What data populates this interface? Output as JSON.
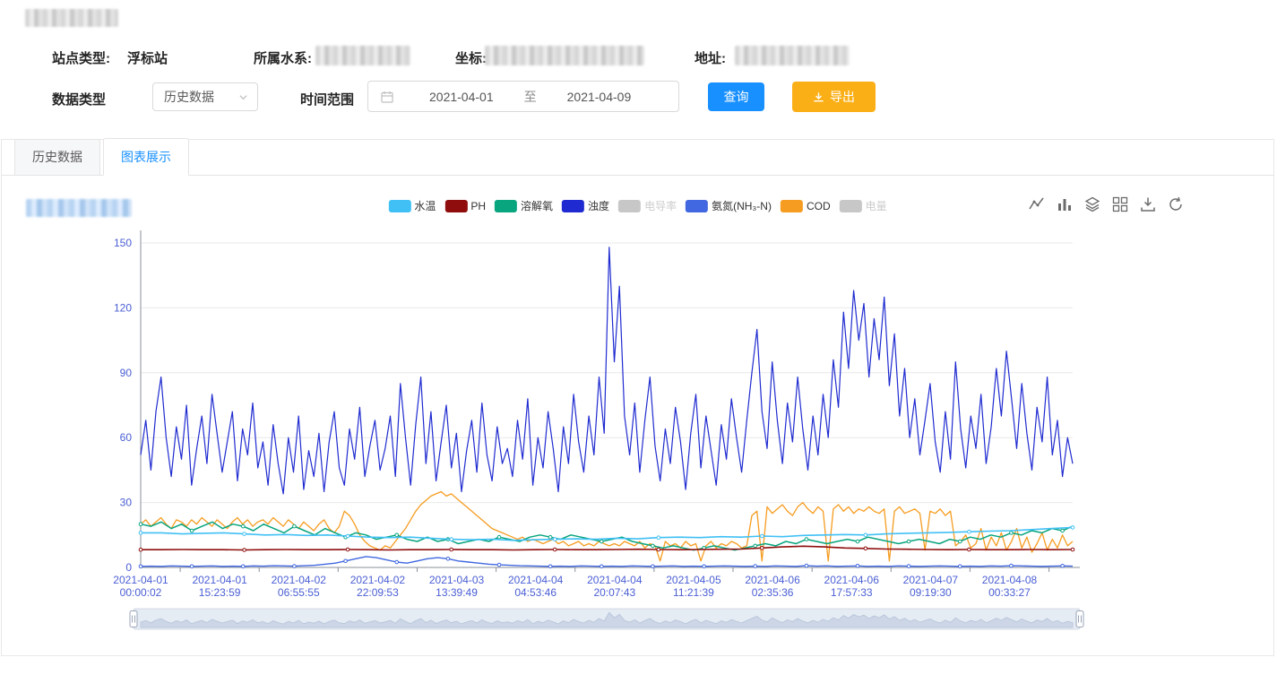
{
  "filters": {
    "station_type_label": "站点类型:",
    "station_type_value": "浮标站",
    "water_system_label": "所属水系:",
    "coordinate_label": "坐标:",
    "address_label": "地址:",
    "data_type_label": "数据类型",
    "data_type_value": "历史数据",
    "time_range_label": "时间范围",
    "date_start": "2021-04-01",
    "date_separator": "至",
    "date_end": "2021-04-09",
    "query_button": "查询",
    "export_button": "导出"
  },
  "redacted_fields": {
    "page_title": true,
    "water_system_value": true,
    "coordinate_value": true,
    "address_value": true,
    "chart_title": true
  },
  "tabs": [
    {
      "label": "历史数据",
      "slug": "history-data",
      "active": false
    },
    {
      "label": "图表展示",
      "slug": "chart-display",
      "active": true
    }
  ],
  "chart_data": {
    "type": "line",
    "title": "",
    "title_redacted": true,
    "ylim": [
      0,
      150
    ],
    "y_ticks": [
      0,
      30,
      60,
      90,
      120,
      150
    ],
    "axis_label_color": "#4a5ed4",
    "grid": true,
    "legend_position": "top-center",
    "x_axis_labels": [
      [
        "2021-04-01",
        "00:00:02"
      ],
      [
        "2021-04-01",
        "15:23:59"
      ],
      [
        "2021-04-02",
        "06:55:55"
      ],
      [
        "2021-04-02",
        "22:09:53"
      ],
      [
        "2021-04-03",
        "13:39:49"
      ],
      [
        "2021-04-04",
        "04:53:46"
      ],
      [
        "2021-04-04",
        "20:07:43"
      ],
      [
        "2021-04-05",
        "11:21:39"
      ],
      [
        "2021-04-06",
        "02:35:36"
      ],
      [
        "2021-04-06",
        "17:57:33"
      ],
      [
        "2021-04-07",
        "09:19:30"
      ],
      [
        "2021-04-08",
        "00:33:27"
      ]
    ],
    "legend": [
      {
        "name": "水温",
        "slug": "water-temp",
        "color": "#41c0f5",
        "enabled": true
      },
      {
        "name": "PH",
        "slug": "ph",
        "color": "#8f0d0d",
        "enabled": true
      },
      {
        "name": "溶解氧",
        "slug": "dissolved-oxygen",
        "color": "#09a57f",
        "enabled": true
      },
      {
        "name": "浊度",
        "slug": "turbidity",
        "color": "#1f2bd0",
        "enabled": true
      },
      {
        "name": "电导率",
        "slug": "conductivity",
        "color": "#c7c7c7",
        "enabled": false
      },
      {
        "name": "氨氮(NH₃-N)",
        "slug": "ammonia",
        "color": "#4168e0",
        "enabled": true
      },
      {
        "name": "COD",
        "slug": "cod",
        "color": "#f69c20",
        "enabled": true
      },
      {
        "name": "电量",
        "slug": "battery",
        "color": "#c7c7c7",
        "enabled": false
      }
    ],
    "toolbox_icons": [
      "line-chart-icon",
      "bar-chart-icon",
      "stack-icon",
      "tile-icon",
      "download-icon",
      "refresh-icon"
    ],
    "series": [
      {
        "name": "浊度",
        "slug": "turbidity",
        "color": "#1f2bd0",
        "width": 1.2,
        "markers": false,
        "values": [
          52,
          68,
          45,
          72,
          88,
          60,
          42,
          65,
          50,
          75,
          38,
          55,
          70,
          48,
          80,
          62,
          44,
          58,
          72,
          40,
          64,
          52,
          76,
          46,
          58,
          38,
          66,
          48,
          34,
          60,
          44,
          70,
          36,
          54,
          42,
          62,
          35,
          58,
          72,
          46,
          38,
          64,
          50,
          74,
          42,
          56,
          68,
          45,
          55,
          70,
          42,
          85,
          60,
          38,
          66,
          88,
          48,
          72,
          40,
          58,
          75,
          46,
          62,
          35,
          54,
          68,
          44,
          76,
          52,
          40,
          65,
          48,
          55,
          42,
          68,
          50,
          78,
          38,
          60,
          46,
          72,
          55,
          35,
          65,
          48,
          80,
          58,
          44,
          70,
          52,
          88,
          62,
          148,
          95,
          130,
          70,
          52,
          76,
          44,
          68,
          88,
          56,
          40,
          64,
          48,
          74,
          58,
          36,
          62,
          80,
          46,
          70,
          54,
          38,
          66,
          50,
          78,
          60,
          44,
          68,
          90,
          110,
          72,
          55,
          95,
          68,
          48,
          76,
          58,
          88,
          64,
          45,
          70,
          52,
          80,
          60,
          96,
          74,
          118,
          92,
          128,
          105,
          122,
          88,
          115,
          96,
          125,
          84,
          108,
          70,
          92,
          60,
          78,
          52,
          68,
          85,
          58,
          44,
          72,
          50,
          95,
          64,
          46,
          70,
          55,
          80,
          48,
          65,
          92,
          70,
          100,
          78,
          55,
          85,
          62,
          45,
          74,
          58,
          88,
          52,
          68,
          42,
          60,
          48
        ]
      },
      {
        "name": "COD",
        "slug": "cod",
        "color": "#f69c20",
        "width": 1.3,
        "markers": false,
        "values": [
          20,
          22,
          19,
          21,
          23,
          20,
          18,
          22,
          21,
          19,
          22,
          20,
          23,
          21,
          19,
          22,
          20,
          18,
          21,
          23,
          20,
          22,
          19,
          21,
          22,
          20,
          23,
          21,
          19,
          22,
          20,
          18,
          21,
          19,
          17,
          20,
          22,
          18,
          16,
          19,
          26,
          24,
          20,
          15,
          12,
          10,
          9,
          8,
          10,
          9,
          12,
          15,
          18,
          22,
          26,
          29,
          31,
          33,
          34,
          35,
          33,
          34,
          32,
          30,
          28,
          26,
          24,
          22,
          20,
          18,
          17,
          16,
          15,
          14,
          13,
          14,
          12,
          13,
          12,
          11,
          12,
          13,
          11,
          12,
          10,
          11,
          12,
          10,
          11,
          10,
          12,
          11,
          10,
          11,
          10,
          12,
          11,
          10,
          12,
          9,
          11,
          10,
          3,
          12,
          10,
          11,
          9,
          12,
          10,
          11,
          3,
          10,
          12,
          9,
          11,
          10,
          12,
          11,
          9,
          10,
          24,
          26,
          3,
          28,
          25,
          27,
          29,
          26,
          24,
          28,
          30,
          27,
          25,
          28,
          26,
          3,
          27,
          29,
          26,
          28,
          25,
          27,
          26,
          28,
          26,
          25,
          27,
          3,
          26,
          28,
          25,
          26,
          27,
          25,
          8,
          26,
          25,
          27,
          24,
          26,
          10,
          12,
          15,
          9,
          11,
          18,
          8,
          14,
          10,
          16,
          8,
          12,
          18,
          9,
          14,
          7,
          11,
          16,
          8,
          13,
          9,
          15,
          10,
          12
        ]
      },
      {
        "name": "溶解氧",
        "slug": "dissolved-oxygen",
        "color": "#09a57f",
        "width": 1.5,
        "markers": true,
        "values": [
          20,
          19,
          21,
          18,
          20,
          17,
          19,
          21,
          18,
          20,
          19,
          17,
          20,
          18,
          16,
          19,
          17,
          15,
          18,
          16,
          14,
          16,
          15,
          13,
          14,
          15,
          13,
          12,
          14,
          12,
          13,
          11,
          12,
          13,
          12,
          14,
          13,
          12,
          14,
          15,
          14,
          13,
          15,
          14,
          13,
          12,
          13,
          14,
          12,
          11,
          10,
          9,
          10,
          9,
          8,
          9,
          10,
          9,
          8,
          9,
          10,
          11,
          10,
          12,
          11,
          13,
          12,
          11,
          12,
          13,
          12,
          14,
          13,
          12,
          11,
          12,
          13,
          12,
          11,
          13,
          12,
          14,
          13,
          15,
          14,
          16,
          15,
          17,
          16,
          18,
          17,
          19
        ]
      },
      {
        "name": "水温",
        "slug": "water-temp",
        "color": "#41c0f5",
        "width": 1.6,
        "markers": true,
        "values": [
          16,
          16,
          15.5,
          15.8,
          16,
          15.5,
          15,
          15.2,
          14.8,
          15,
          14.5,
          14,
          13.8,
          14,
          13.5,
          13,
          12.8,
          13,
          12.5,
          12.8,
          13,
          13.2,
          13,
          13.5,
          13.2,
          13.8,
          14,
          13.8,
          14.2,
          14,
          14.5,
          14.2,
          14.8,
          15,
          15.2,
          15,
          15.5,
          15.8,
          16,
          16.2,
          16.5,
          16.8,
          17,
          17.5,
          18,
          18.5
        ]
      },
      {
        "name": "PH",
        "slug": "ph",
        "color": "#8f0d0d",
        "width": 1.6,
        "markers": true,
        "values": [
          8.2,
          8.2,
          8.3,
          8.2,
          8.2,
          8.1,
          8.2,
          8.3,
          8.2,
          8.2,
          8.3,
          8.2,
          8.1,
          8.2,
          8.2,
          8.3,
          8.2,
          8.2,
          8.1,
          8.2,
          8.3,
          8.2,
          8.2,
          8.3,
          8.4,
          8.3,
          8.2,
          8.3,
          8.4,
          8.5,
          9,
          9.5,
          9.8,
          9.5,
          9,
          8.8,
          8.5,
          8.4,
          8.3,
          8.2,
          8.3,
          8.2,
          8.2,
          8.3,
          8.2,
          8.3
        ]
      },
      {
        "name": "氨氮(NH₃-N)",
        "slug": "ammonia",
        "color": "#4168e0",
        "width": 1.4,
        "markers": true,
        "values": [
          0.5,
          0.6,
          0.5,
          0.7,
          0.6,
          0.5,
          0.6,
          0.7,
          0.5,
          0.6,
          0.5,
          0.7,
          0.6,
          0.8,
          0.7,
          0.6,
          0.8,
          1,
          1.5,
          2,
          3,
          4,
          5,
          4.5,
          3.5,
          2.5,
          2,
          3,
          4,
          4.5,
          4,
          3,
          2.5,
          2,
          1.5,
          1.2,
          1,
          0.8,
          0.7,
          0.6,
          0.5,
          0.6,
          0.5,
          0.7,
          0.6,
          0.5,
          0.6,
          0.5,
          0.7,
          0.6,
          0.5,
          0.6,
          0.7,
          0.5,
          0.6,
          0.5,
          0.6,
          0.7,
          0.6,
          0.5,
          0.6,
          0.5,
          0.7,
          0.6,
          0.5,
          0.8,
          0.6,
          0.7,
          0.5,
          0.6,
          0.7,
          0.5,
          0.6,
          0.5,
          0.7,
          0.6,
          0.5,
          0.6,
          0.7,
          0.6,
          0.5,
          0.6,
          0.5,
          0.7,
          0.6,
          0.8,
          0.7,
          0.6,
          0.5,
          0.6,
          0.7,
          0.6
        ]
      }
    ]
  }
}
